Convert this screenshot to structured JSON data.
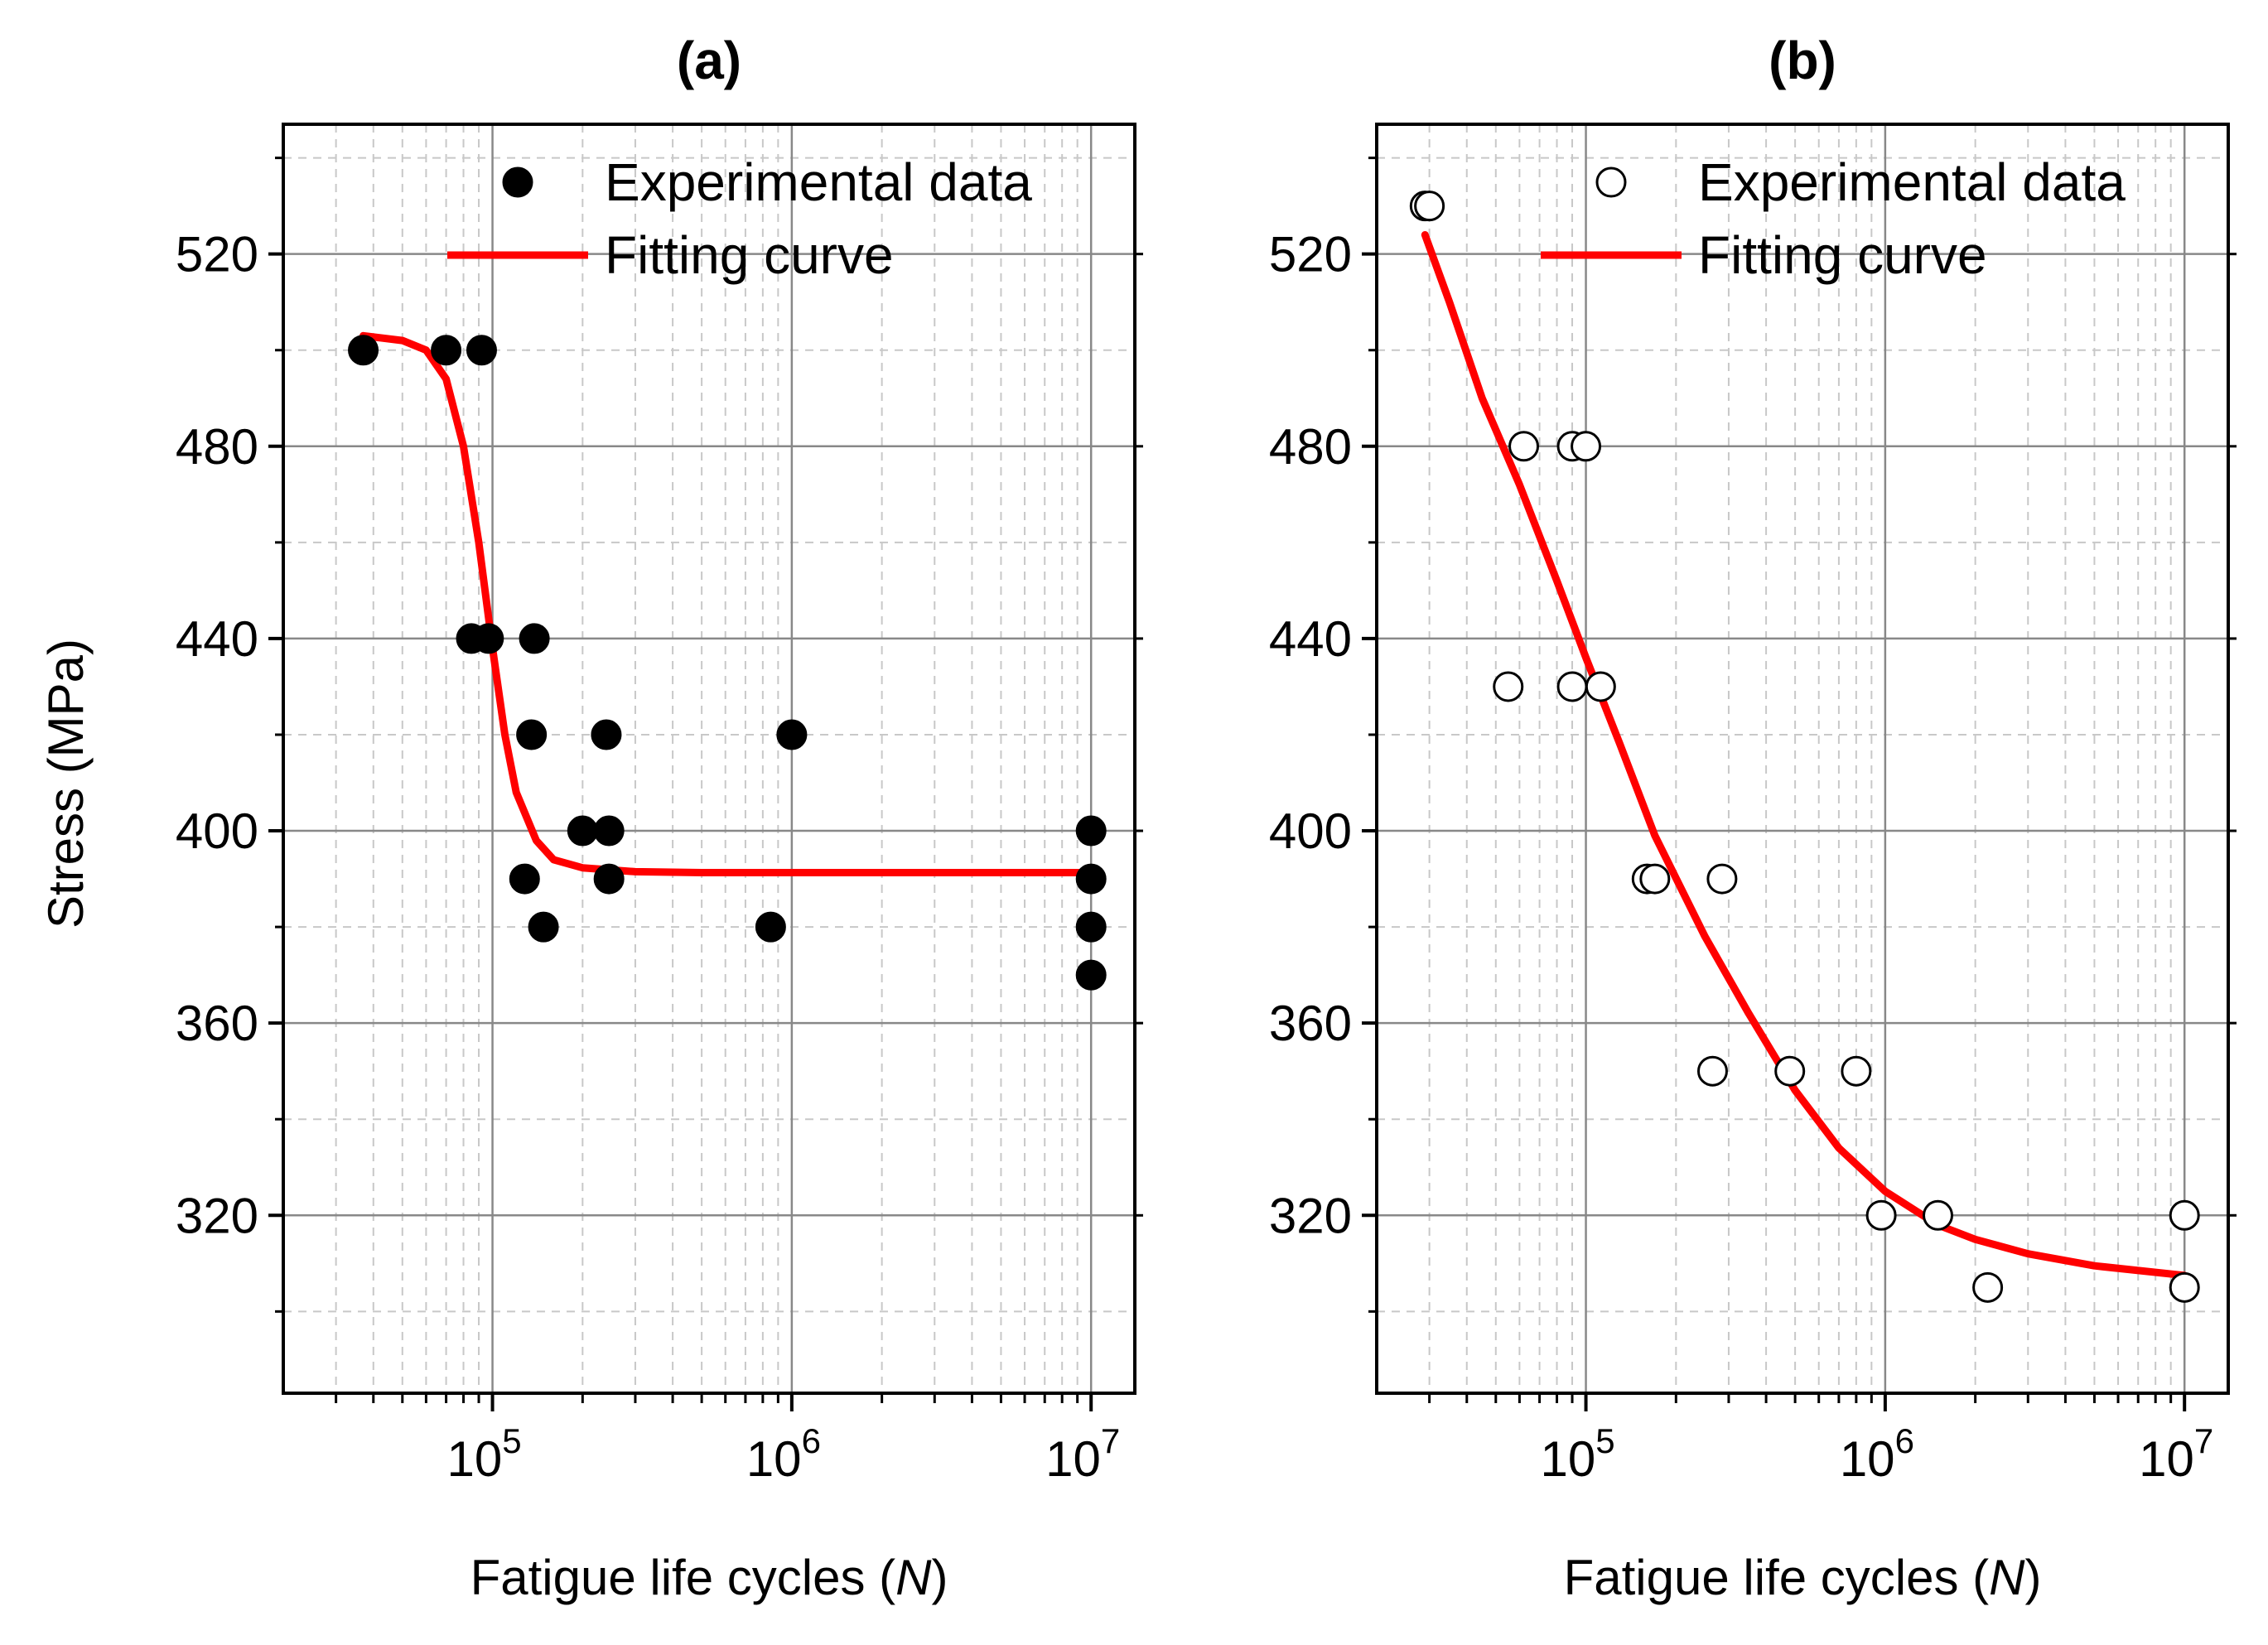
{
  "chart_data": [
    {
      "panel": "(a)",
      "type": "scatter",
      "xlabel": "Fatigue life cycles (",
      "xlabel_var": "N",
      "xlabel_end": ")",
      "ylabel": "Stress (MPa)",
      "xscale": "log",
      "xlim": [
        20000,
        14000000
      ],
      "ylim": [
        283,
        547
      ],
      "xticks": [
        100000,
        1000000,
        10000000
      ],
      "xtick_exponents": [
        "5",
        "6",
        "7"
      ],
      "yticks": [
        320,
        360,
        400,
        440,
        480,
        520
      ],
      "grid": true,
      "legend_position": "top-right",
      "series": [
        {
          "name": "Experimental data",
          "style": "filled-circle",
          "color": "#000000",
          "points": [
            [
              37000,
              500
            ],
            [
              70000,
              500
            ],
            [
              92000,
              500
            ],
            [
              85000,
              440
            ],
            [
              97000,
              440
            ],
            [
              138000,
              440
            ],
            [
              135000,
              420
            ],
            [
              240000,
              420
            ],
            [
              1000000,
              420
            ],
            [
              200000,
              400
            ],
            [
              245000,
              400
            ],
            [
              10000000,
              400
            ],
            [
              128000,
              390
            ],
            [
              245000,
              390
            ],
            [
              10000000,
              390
            ],
            [
              148000,
              380
            ],
            [
              850000,
              380
            ],
            [
              10000000,
              380
            ],
            [
              10000000,
              370
            ]
          ]
        },
        {
          "name": "Fitting curve",
          "style": "line",
          "color": "#ff0000",
          "points": [
            [
              37000,
              503
            ],
            [
              50000,
              502
            ],
            [
              60000,
              500
            ],
            [
              70000,
              494
            ],
            [
              80000,
              480
            ],
            [
              90000,
              460
            ],
            [
              100000,
              438
            ],
            [
              110000,
              420
            ],
            [
              120000,
              408
            ],
            [
              140000,
              398
            ],
            [
              160000,
              394
            ],
            [
              200000,
              392.3
            ],
            [
              300000,
              391.5
            ],
            [
              500000,
              391.3
            ],
            [
              1000000,
              391.3
            ],
            [
              10000000,
              391.3
            ]
          ]
        }
      ]
    },
    {
      "panel": "(b)",
      "type": "scatter",
      "xlabel": "Fatigue life cycles (",
      "xlabel_var": "N",
      "xlabel_end": ")",
      "ylabel": "",
      "xscale": "log",
      "xlim": [
        20000,
        14000000
      ],
      "ylim": [
        283,
        547
      ],
      "xticks": [
        100000,
        1000000,
        10000000
      ],
      "xtick_exponents": [
        "5",
        "6",
        "7"
      ],
      "yticks": [
        320,
        360,
        400,
        440,
        480,
        520
      ],
      "grid": true,
      "legend_position": "top-right",
      "series": [
        {
          "name": "Experimental data",
          "style": "open-circle",
          "color": "#000000",
          "points": [
            [
              29000,
              530
            ],
            [
              30000,
              530
            ],
            [
              62000,
              480
            ],
            [
              90000,
              480
            ],
            [
              100000,
              480
            ],
            [
              55000,
              430
            ],
            [
              90000,
              430
            ],
            [
              112000,
              430
            ],
            [
              160000,
              390
            ],
            [
              170000,
              390
            ],
            [
              285000,
              390
            ],
            [
              265000,
              350
            ],
            [
              480000,
              350
            ],
            [
              800000,
              350
            ],
            [
              970000,
              320
            ],
            [
              1500000,
              320
            ],
            [
              10000000,
              320
            ],
            [
              2200000,
              305
            ],
            [
              10000000,
              305
            ]
          ]
        },
        {
          "name": "Fitting curve",
          "style": "line",
          "color": "#ff0000",
          "points": [
            [
              29000,
              524
            ],
            [
              35000,
              510
            ],
            [
              45000,
              490
            ],
            [
              60000,
              472
            ],
            [
              80000,
              452
            ],
            [
              100000,
              436
            ],
            [
              130000,
              418
            ],
            [
              170000,
              399
            ],
            [
              250000,
              378
            ],
            [
              350000,
              362
            ],
            [
              500000,
              346
            ],
            [
              700000,
              334
            ],
            [
              1000000,
              325
            ],
            [
              1500000,
              318
            ],
            [
              2000000,
              315
            ],
            [
              3000000,
              312
            ],
            [
              5000000,
              309.5
            ],
            [
              10000000,
              307.5
            ]
          ]
        }
      ]
    }
  ]
}
